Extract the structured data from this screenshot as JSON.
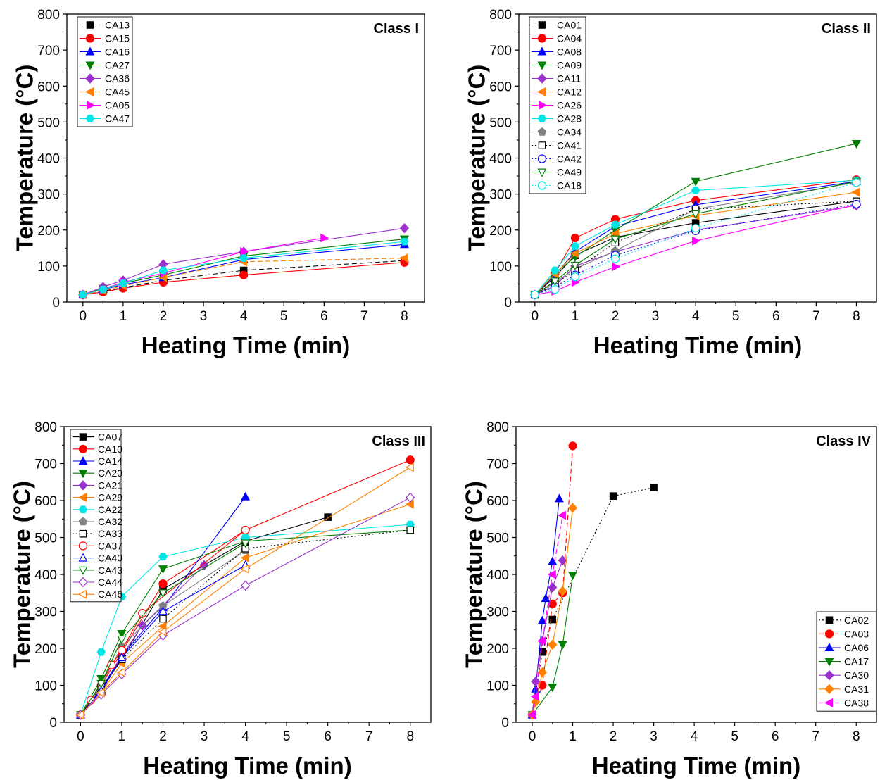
{
  "chart_data": [
    {
      "type": "line",
      "title": "Class I",
      "xlabel": "Heating Time (min)",
      "ylabel": "Temperature (°C)",
      "xlim": [
        -0.4,
        8.5
      ],
      "ylim": [
        0,
        800
      ],
      "xticks": [
        0,
        1,
        2,
        3,
        4,
        5,
        6,
        7,
        8
      ],
      "yticks": [
        0,
        100,
        200,
        300,
        400,
        500,
        600,
        700,
        800
      ],
      "legend_position": "top-left",
      "series": [
        {
          "name": "CA13",
          "color": "#000000",
          "marker": "square",
          "filled": true,
          "dash": "dashed",
          "x": [
            0,
            0.5,
            1,
            2,
            4,
            8
          ],
          "y": [
            20,
            30,
            40,
            60,
            88,
            115
          ]
        },
        {
          "name": "CA15",
          "color": "#ff0000",
          "marker": "circle",
          "filled": true,
          "dash": "solid",
          "x": [
            0,
            0.5,
            1,
            2,
            4,
            8
          ],
          "y": [
            20,
            28,
            38,
            55,
            75,
            110
          ]
        },
        {
          "name": "CA16",
          "color": "#0000ff",
          "marker": "triangle-up",
          "filled": true,
          "dash": "solid",
          "x": [
            0,
            0.5,
            1,
            2,
            4,
            8
          ],
          "y": [
            20,
            35,
            48,
            68,
            118,
            160
          ]
        },
        {
          "name": "CA27",
          "color": "#008000",
          "marker": "triangle-down",
          "filled": true,
          "dash": "solid",
          "x": [
            0,
            0.5,
            1,
            2,
            4,
            8
          ],
          "y": [
            20,
            38,
            52,
            75,
            128,
            175
          ]
        },
        {
          "name": "CA36",
          "color": "#9932cc",
          "marker": "diamond",
          "filled": true,
          "dash": "solid",
          "x": [
            0,
            0.5,
            1,
            2,
            4,
            8
          ],
          "y": [
            20,
            42,
            60,
            105,
            140,
            205
          ]
        },
        {
          "name": "CA45",
          "color": "#ff8000",
          "marker": "triangle-left",
          "filled": true,
          "dash": "dashed",
          "x": [
            0,
            0.5,
            1,
            2,
            4,
            8
          ],
          "y": [
            20,
            32,
            45,
            68,
            112,
            122
          ]
        },
        {
          "name": "CA05",
          "color": "#ff00ff",
          "marker": "triangle-right",
          "filled": true,
          "dash": "solid",
          "x": [
            0,
            0.5,
            1,
            2,
            4,
            6
          ],
          "y": [
            20,
            35,
            55,
            80,
            140,
            178
          ]
        },
        {
          "name": "CA47",
          "color": "#00e5e5",
          "marker": "hexagon",
          "filled": true,
          "dash": "solid",
          "x": [
            0,
            0.5,
            1,
            2,
            4,
            8
          ],
          "y": [
            20,
            35,
            52,
            88,
            122,
            168
          ]
        }
      ]
    },
    {
      "type": "line",
      "title": "Class II",
      "xlabel": "Heating Time (min)",
      "ylabel": "Temperature (°C)",
      "xlim": [
        -0.4,
        8.5
      ],
      "ylim": [
        0,
        800
      ],
      "xticks": [
        0,
        1,
        2,
        3,
        4,
        5,
        6,
        7,
        8
      ],
      "yticks": [
        0,
        100,
        200,
        300,
        400,
        500,
        600,
        700,
        800
      ],
      "legend_position": "top-left",
      "series": [
        {
          "name": "CA01",
          "color": "#000000",
          "marker": "square",
          "filled": true,
          "dash": "solid",
          "x": [
            0,
            0.5,
            1,
            2,
            4,
            8
          ],
          "y": [
            20,
            70,
            130,
            180,
            220,
            280
          ]
        },
        {
          "name": "CA04",
          "color": "#ff0000",
          "marker": "circle",
          "filled": true,
          "dash": "solid",
          "x": [
            0,
            0.5,
            1,
            2,
            4,
            8
          ],
          "y": [
            20,
            80,
            178,
            230,
            282,
            340
          ]
        },
        {
          "name": "CA08",
          "color": "#0000ff",
          "marker": "triangle-up",
          "filled": true,
          "dash": "solid",
          "x": [
            0,
            0.5,
            1,
            2,
            4,
            8
          ],
          "y": [
            20,
            75,
            140,
            210,
            270,
            335
          ]
        },
        {
          "name": "CA09",
          "color": "#008000",
          "marker": "triangle-down",
          "filled": true,
          "dash": "solid",
          "x": [
            0,
            0.5,
            1,
            2,
            4,
            8
          ],
          "y": [
            20,
            80,
            125,
            200,
            335,
            440
          ]
        },
        {
          "name": "CA11",
          "color": "#9932cc",
          "marker": "diamond",
          "filled": true,
          "dash": "solid",
          "x": [
            0,
            0.5,
            1,
            2,
            4,
            8
          ],
          "y": [
            20,
            45,
            100,
            140,
            200,
            268
          ]
        },
        {
          "name": "CA12",
          "color": "#ff8000",
          "marker": "triangle-left",
          "filled": true,
          "dash": "solid",
          "x": [
            0,
            0.5,
            1,
            2,
            4,
            8
          ],
          "y": [
            20,
            78,
            135,
            190,
            240,
            305
          ]
        },
        {
          "name": "CA26",
          "color": "#ff00ff",
          "marker": "triangle-right",
          "filled": true,
          "dash": "solid",
          "x": [
            0,
            0.5,
            1,
            2,
            4,
            8
          ],
          "y": [
            20,
            30,
            55,
            98,
            170,
            270
          ]
        },
        {
          "name": "CA28",
          "color": "#00e5e5",
          "marker": "hexagon",
          "filled": true,
          "dash": "solid",
          "x": [
            0,
            0.5,
            1,
            2,
            4,
            8
          ],
          "y": [
            20,
            88,
            155,
            215,
            310,
            338
          ]
        },
        {
          "name": "CA34",
          "color": "#808080",
          "marker": "pentagon",
          "filled": true,
          "dash": "solid",
          "x": [
            0,
            0.5,
            1,
            2,
            4,
            8
          ],
          "y": [
            20,
            55,
            92,
            142,
            258,
            332
          ]
        },
        {
          "name": "CA41",
          "color": "#000000",
          "marker": "square",
          "filled": false,
          "dash": "dotted",
          "x": [
            0,
            0.5,
            1,
            2,
            4,
            8
          ],
          "y": [
            20,
            50,
            88,
            165,
            258,
            280
          ]
        },
        {
          "name": "CA42",
          "color": "#0000ff",
          "marker": "circle",
          "filled": false,
          "dash": "dotted",
          "x": [
            0,
            0.5,
            1,
            2,
            4,
            8
          ],
          "y": [
            20,
            42,
            75,
            130,
            198,
            272
          ]
        },
        {
          "name": "CA49",
          "color": "#008000",
          "marker": "triangle-down",
          "filled": false,
          "dash": "solid",
          "x": [
            0,
            0.5,
            1,
            2,
            4,
            8
          ],
          "y": [
            20,
            58,
            102,
            175,
            245,
            335
          ]
        },
        {
          "name": "CA18",
          "color": "#00e5e5",
          "marker": "circle",
          "filled": false,
          "dash": "dotted",
          "x": [
            0,
            0.5,
            1,
            2,
            4,
            8
          ],
          "y": [
            20,
            35,
            70,
            120,
            205,
            332
          ]
        }
      ]
    },
    {
      "type": "line",
      "title": "Class III",
      "xlabel": "Heating Time (min)",
      "ylabel": "Temperature (°C)",
      "xlim": [
        -0.4,
        8.5
      ],
      "ylim": [
        0,
        800
      ],
      "xticks": [
        0,
        1,
        2,
        3,
        4,
        5,
        6,
        7,
        8
      ],
      "yticks": [
        0,
        100,
        200,
        300,
        400,
        500,
        600,
        700,
        800
      ],
      "legend_position": "top-left",
      "series": [
        {
          "name": "CA07",
          "color": "#000000",
          "marker": "square",
          "filled": true,
          "dash": "solid",
          "x": [
            0,
            0.5,
            1,
            2,
            4,
            6
          ],
          "y": [
            20,
            90,
            170,
            360,
            490,
            555
          ]
        },
        {
          "name": "CA10",
          "color": "#ff0000",
          "marker": "circle",
          "filled": true,
          "dash": "solid",
          "x": [
            0,
            0.5,
            1,
            2,
            4,
            8
          ],
          "y": [
            20,
            100,
            190,
            375,
            520,
            710
          ]
        },
        {
          "name": "CA14",
          "color": "#0000ff",
          "marker": "triangle-up",
          "filled": true,
          "dash": "solid",
          "x": [
            0,
            0.5,
            1,
            2,
            4
          ],
          "y": [
            20,
            90,
            180,
            310,
            610
          ]
        },
        {
          "name": "CA20",
          "color": "#008000",
          "marker": "triangle-down",
          "filled": true,
          "dash": "solid",
          "x": [
            0,
            0.5,
            1,
            2,
            4,
            8
          ],
          "y": [
            20,
            118,
            240,
            415,
            490,
            520
          ]
        },
        {
          "name": "CA21",
          "color": "#9932cc",
          "marker": "diamond",
          "filled": true,
          "dash": "solid",
          "x": [
            0,
            0.5,
            1,
            1.5,
            3
          ],
          "y": [
            20,
            80,
            180,
            262,
            425
          ]
        },
        {
          "name": "CA29",
          "color": "#ff8000",
          "marker": "triangle-left",
          "filled": true,
          "dash": "solid",
          "x": [
            0,
            0.5,
            1,
            2,
            4,
            8
          ],
          "y": [
            20,
            80,
            160,
            260,
            445,
            590
          ]
        },
        {
          "name": "CA22",
          "color": "#00e5e5",
          "marker": "hexagon",
          "filled": true,
          "dash": "solid",
          "x": [
            0,
            0.5,
            1,
            2,
            4,
            8
          ],
          "y": [
            20,
            190,
            340,
            448,
            500,
            535
          ]
        },
        {
          "name": "CA32",
          "color": "#808080",
          "marker": "pentagon",
          "filled": true,
          "dash": "solid",
          "x": [
            0,
            0.5,
            1,
            2,
            4
          ],
          "y": [
            20,
            100,
            205,
            315,
            465
          ]
        },
        {
          "name": "CA33",
          "color": "#000000",
          "marker": "square",
          "filled": false,
          "dash": "dotted",
          "x": [
            0,
            0.5,
            1,
            2,
            4,
            8
          ],
          "y": [
            20,
            95,
            170,
            280,
            470,
            520
          ]
        },
        {
          "name": "CA37",
          "color": "#ff0000",
          "marker": "circle",
          "filled": false,
          "dash": "solid",
          "x": [
            0,
            0.25,
            0.75,
            1,
            1.5,
            4
          ],
          "y": [
            20,
            60,
            155,
            195,
            295,
            520
          ]
        },
        {
          "name": "CA40",
          "color": "#0000ff",
          "marker": "triangle-up",
          "filled": false,
          "dash": "solid",
          "x": [
            0,
            0.5,
            1,
            2,
            4
          ],
          "y": [
            20,
            85,
            175,
            300,
            425
          ]
        },
        {
          "name": "CA43",
          "color": "#008000",
          "marker": "triangle-down",
          "filled": false,
          "dash": "solid",
          "x": [
            0,
            0.5,
            1,
            2,
            4
          ],
          "y": [
            20,
            105,
            225,
            350,
            485
          ]
        },
        {
          "name": "CA44",
          "color": "#9932cc",
          "marker": "diamond",
          "filled": false,
          "dash": "solid",
          "x": [
            0,
            0.5,
            1,
            2,
            4,
            8
          ],
          "y": [
            20,
            75,
            130,
            235,
            370,
            608
          ]
        },
        {
          "name": "CA46",
          "color": "#ff8000",
          "marker": "triangle-left",
          "filled": false,
          "dash": "solid",
          "x": [
            0,
            0.5,
            1,
            2,
            4,
            8
          ],
          "y": [
            20,
            80,
            135,
            245,
            415,
            690
          ]
        }
      ]
    },
    {
      "type": "line",
      "title": "Class IV",
      "xlabel": "Heating Time (min)",
      "ylabel": "Temperature (°C)",
      "xlim": [
        -0.4,
        8.5
      ],
      "ylim": [
        0,
        800
      ],
      "xticks": [
        0,
        1,
        2,
        3,
        4,
        5,
        6,
        7,
        8
      ],
      "yticks": [
        0,
        100,
        200,
        300,
        400,
        500,
        600,
        700,
        800
      ],
      "legend_position": "bottom-right",
      "series": [
        {
          "name": "CA02",
          "color": "#000000",
          "marker": "square",
          "filled": true,
          "dash": "dotted",
          "x": [
            0,
            0.25,
            0.5,
            2,
            3
          ],
          "y": [
            20,
            190,
            278,
            612,
            635
          ]
        },
        {
          "name": "CA03",
          "color": "#ff0000",
          "marker": "circle",
          "filled": true,
          "dash": "dashed",
          "x": [
            0,
            0.25,
            0.5,
            0.75,
            1
          ],
          "y": [
            20,
            100,
            320,
            350,
            748
          ]
        },
        {
          "name": "CA06",
          "color": "#0000ff",
          "marker": "triangle-up",
          "filled": true,
          "dash": "solid",
          "x": [
            0,
            0.083,
            0.25,
            0.333,
            0.5,
            0.667
          ],
          "y": [
            20,
            90,
            275,
            335,
            435,
            605
          ]
        },
        {
          "name": "CA17",
          "color": "#008000",
          "marker": "triangle-down",
          "filled": true,
          "dash": "solid",
          "x": [
            0,
            0.5,
            0.75,
            1
          ],
          "y": [
            20,
            95,
            210,
            398
          ]
        },
        {
          "name": "CA30",
          "color": "#9932cc",
          "marker": "diamond",
          "filled": true,
          "dash": "solid",
          "x": [
            0,
            0.083,
            0.25,
            0.5,
            0.75
          ],
          "y": [
            20,
            110,
            220,
            365,
            438
          ]
        },
        {
          "name": "CA31",
          "color": "#ff8000",
          "marker": "diamond",
          "filled": true,
          "dash": "solid",
          "x": [
            0,
            0.083,
            0.25,
            0.5,
            0.75,
            1
          ],
          "y": [
            20,
            55,
            135,
            210,
            355,
            580
          ]
        },
        {
          "name": "CA38",
          "color": "#ff00ff",
          "marker": "triangle-left",
          "filled": true,
          "dash": "dashed",
          "x": [
            0,
            0.083,
            0.25,
            0.5,
            0.75
          ],
          "y": [
            20,
            70,
            220,
            400,
            560
          ]
        }
      ]
    }
  ]
}
